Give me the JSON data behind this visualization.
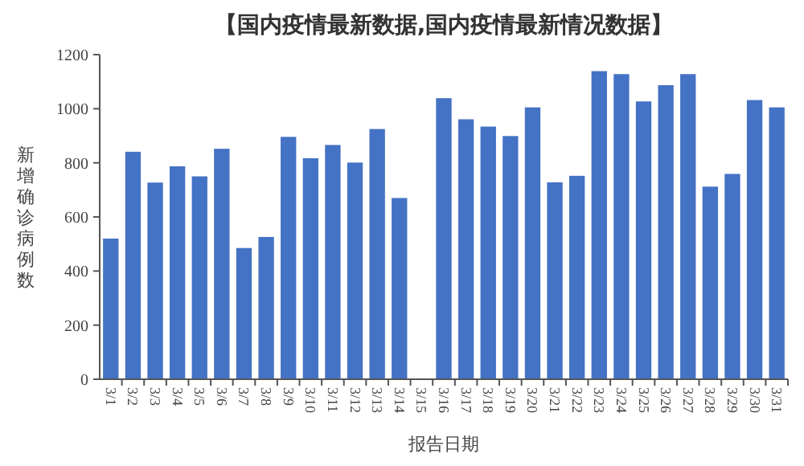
{
  "chart_data": {
    "type": "bar",
    "title": "【国内疫情最新数据,国内疫情最新情况数据】",
    "xlabel": "报告日期",
    "ylabel": "新增确诊病例数",
    "categories": [
      "3/1",
      "3/2",
      "3/3",
      "3/4",
      "3/5",
      "3/6",
      "3/7",
      "3/8",
      "3/9",
      "3/10",
      "3/11",
      "3/12",
      "3/13",
      "3/14",
      "3/15",
      "3/16",
      "3/17",
      "3/18",
      "3/19",
      "3/20",
      "3/21",
      "3/22",
      "3/23",
      "3/24",
      "3/25",
      "3/26",
      "3/27",
      "3/28",
      "3/29",
      "3/30",
      "3/31"
    ],
    "values": [
      520,
      841,
      727,
      787,
      750,
      852,
      485,
      526,
      896,
      817,
      866,
      801,
      925,
      670,
      null,
      1039,
      961,
      934,
      899,
      1005,
      728,
      752,
      1139,
      1128,
      1027,
      1087,
      1128,
      712,
      759,
      1032,
      1005
    ],
    "color": "#4472c4",
    "ylim": [
      0,
      1200
    ],
    "yticks": [
      0,
      200,
      400,
      600,
      800,
      1000,
      1200
    ]
  }
}
